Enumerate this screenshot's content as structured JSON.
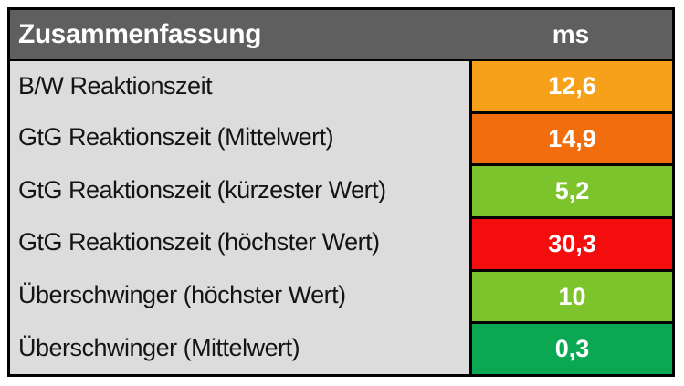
{
  "colors": {
    "header_bg": "#5f5f5f",
    "label_cell_bg": "#dcdcdc",
    "border": "#000000",
    "orange": "#f7a11b",
    "dark_orange": "#f26d0d",
    "yellow_green": "#7dc32c",
    "red": "#f40d0d",
    "emerald_green": "#0ba853",
    "header_text": "#ffffff",
    "value_text": "#ffffff",
    "label_text": "#141414"
  },
  "table": {
    "header": {
      "title": "Zusammenfassung",
      "unit_label": "ms"
    },
    "rows": [
      {
        "label": "B/W Reaktionszeit",
        "value": "12,6",
        "color": "#f7a11b"
      },
      {
        "label": "GtG Reaktionszeit (Mittelwert)",
        "value": "14,9",
        "color": "#f26d0d"
      },
      {
        "label": "GtG Reaktionszeit (kürzester Wert)",
        "value": "5,2",
        "color": "#7dc32c"
      },
      {
        "label": "GtG Reaktionszeit (höchster Wert)",
        "value": "30,3",
        "color": "#f40d0d"
      },
      {
        "label": "Überschwinger (höchster Wert)",
        "value": "10",
        "color": "#7dc32c"
      },
      {
        "label": "Überschwinger (Mittelwert)",
        "value": "0,3",
        "color": "#0ba853"
      }
    ]
  },
  "chart_data": {
    "type": "table",
    "title": "Zusammenfassung",
    "unit": "ms",
    "columns": [
      "Zusammenfassung",
      "ms"
    ],
    "rows": [
      [
        "B/W Reaktionszeit",
        "12,6"
      ],
      [
        "GtG Reaktionszeit (Mittelwert)",
        "14,9"
      ],
      [
        "GtG Reaktionszeit (kürzester Wert)",
        "5,2"
      ],
      [
        "GtG Reaktionszeit (höchster Wert)",
        "30,3"
      ],
      [
        "Überschwinger (höchster Wert)",
        "10"
      ],
      [
        "Überschwinger (Mittelwert)",
        "0,3"
      ]
    ],
    "values_numeric": [
      12.6,
      14.9,
      5.2,
      30.3,
      10,
      0.3
    ],
    "cell_colors": [
      "#f7a11b",
      "#f26d0d",
      "#7dc32c",
      "#f40d0d",
      "#7dc32c",
      "#0ba853"
    ],
    "color_semantics": {
      "#f7a11b": "orange-mediocre",
      "#f26d0d": "dark-orange-poor",
      "#7dc32c": "green-good",
      "#f40d0d": "red-bad",
      "#0ba853": "emerald-very-good"
    }
  }
}
